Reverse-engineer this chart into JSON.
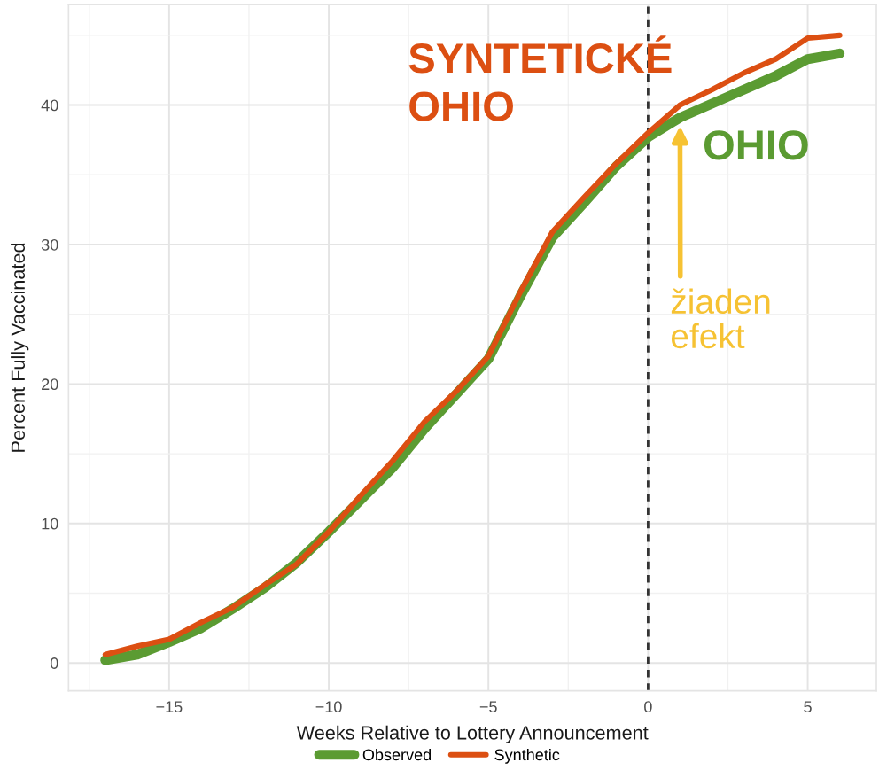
{
  "chart_data": {
    "type": "line",
    "xlabel": "Weeks Relative to Lottery Announcement",
    "ylabel": "Percent Fully Vaccinated",
    "x": [
      -17,
      -16,
      -15,
      -14,
      -13,
      -12,
      -11,
      -10,
      -9,
      -8,
      -7,
      -6,
      -5,
      -4,
      -3,
      -2,
      -1,
      0,
      1,
      2,
      3,
      4,
      5,
      6
    ],
    "series": [
      {
        "name": "Observed",
        "color": "#5b9b32",
        "values": [
          0.2,
          0.6,
          1.5,
          2.5,
          3.9,
          5.4,
          7.2,
          9.4,
          11.7,
          14.0,
          16.8,
          19.3,
          21.8,
          26.3,
          30.5,
          33.0,
          35.6,
          37.7,
          39.1,
          40.1,
          41.1,
          42.1,
          43.3,
          43.7
        ]
      },
      {
        "name": "Synthetic",
        "color": "#dc4f12",
        "values": [
          0.6,
          1.2,
          1.7,
          2.9,
          4.0,
          5.6,
          7.1,
          9.4,
          12.0,
          14.5,
          17.3,
          19.5,
          22.0,
          26.6,
          30.9,
          33.4,
          35.8,
          38.0,
          40.0,
          41.1,
          42.3,
          43.3,
          44.8,
          45.0
        ]
      }
    ],
    "xlim": [
      -18.15,
      7.15
    ],
    "xticks": [
      {
        "value": -15,
        "label": "−15"
      },
      {
        "value": -10,
        "label": "−10"
      },
      {
        "value": -5,
        "label": "−5"
      },
      0,
      5
    ],
    "ylim": [
      -2.0,
      47.2
    ],
    "yticks": [
      0,
      10,
      20,
      30,
      40
    ],
    "ref_lines": [
      {
        "axis": "x",
        "value": 0,
        "color": "#333333",
        "line_style": "dashed"
      }
    ],
    "annotations": [
      "SYNTETICKÉ\nOHIO",
      "OHIO",
      {
        "text": "žiaden\nefekt",
        "x": 1,
        "y": 38.5
      }
    ],
    "grid": true,
    "legend": "bottom"
  }
}
